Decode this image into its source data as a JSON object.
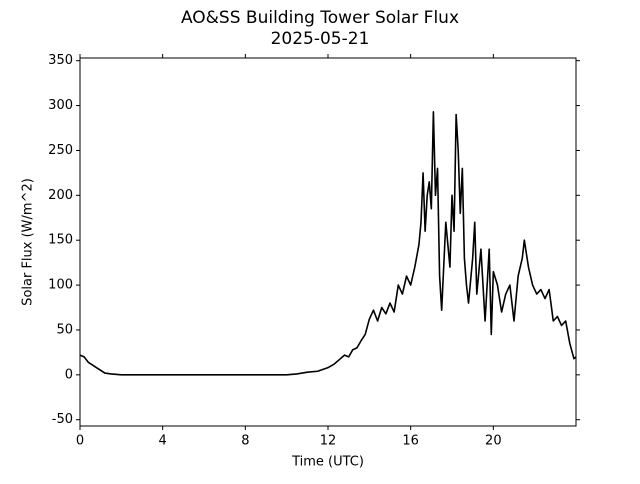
{
  "chart_data": {
    "type": "line",
    "title": "AO&SS Building Tower Solar Flux",
    "subtitle": "2025-05-21",
    "x_label": "Time (UTC)",
    "y_label": "Solar Flux (W/m^2)",
    "xlim": [
      0,
      24
    ],
    "xticks": [
      0,
      4,
      8,
      12,
      16,
      20
    ],
    "ylim": [
      -57,
      353
    ],
    "yticks": [
      -50,
      0,
      50,
      100,
      150,
      200,
      250,
      300,
      350
    ],
    "grid": false,
    "series": [
      {
        "name": "Solar Flux",
        "color": "#000000",
        "x": [
          0,
          0.2,
          0.4,
          0.6,
          0.8,
          1.0,
          1.2,
          1.5,
          2,
          3,
          4,
          5,
          6,
          7,
          8,
          9,
          10,
          10.5,
          11,
          11.5,
          12,
          12.3,
          12.6,
          12.8,
          13,
          13.2,
          13.4,
          13.6,
          13.8,
          14,
          14.2,
          14.4,
          14.6,
          14.8,
          15,
          15.2,
          15.4,
          15.6,
          15.8,
          16,
          16.2,
          16.4,
          16.5,
          16.6,
          16.7,
          16.8,
          16.9,
          17.0,
          17.1,
          17.2,
          17.3,
          17.4,
          17.5,
          17.7,
          17.9,
          18.0,
          18.1,
          18.2,
          18.3,
          18.4,
          18.5,
          18.6,
          18.7,
          18.8,
          19.0,
          19.1,
          19.2,
          19.4,
          19.6,
          19.8,
          19.9,
          20.0,
          20.2,
          20.4,
          20.6,
          20.8,
          21.0,
          21.2,
          21.4,
          21.5,
          21.7,
          21.9,
          22.1,
          22.3,
          22.5,
          22.7,
          22.9,
          23.1,
          23.3,
          23.5,
          23.7,
          23.9,
          24.0
        ],
        "values": [
          22,
          20,
          14,
          11,
          8,
          5,
          2,
          1,
          0,
          0,
          0,
          0,
          0,
          0,
          0,
          0,
          0,
          1,
          3,
          4,
          8,
          12,
          18,
          22,
          20,
          28,
          30,
          38,
          45,
          62,
          72,
          60,
          75,
          68,
          80,
          70,
          100,
          90,
          110,
          100,
          120,
          145,
          170,
          225,
          160,
          200,
          215,
          185,
          293,
          200,
          230,
          110,
          72,
          170,
          120,
          200,
          160,
          290,
          250,
          180,
          230,
          130,
          100,
          80,
          130,
          170,
          90,
          140,
          60,
          140,
          45,
          115,
          100,
          70,
          90,
          100,
          60,
          110,
          130,
          150,
          120,
          100,
          90,
          95,
          85,
          95,
          60,
          65,
          55,
          60,
          35,
          18,
          20
        ]
      }
    ]
  }
}
